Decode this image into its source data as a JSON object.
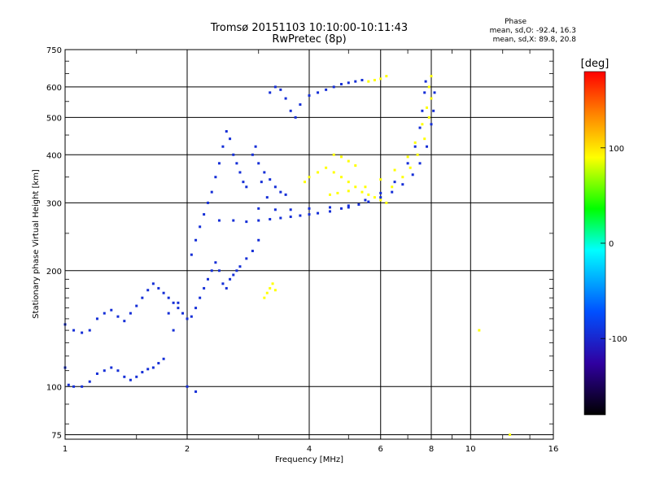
{
  "chart_data": {
    "type": "scatter",
    "title": "Tromsø 20151103 10:10:00-10:11:43",
    "subtitle": "RwPretec (8p)",
    "xlabel": "Frequency [MHz]",
    "ylabel": "Stationary phase Virtual Height [km]",
    "x_scale": "log",
    "y_scale": "log",
    "xlim": [
      1,
      16
    ],
    "ylim": [
      73,
      750
    ],
    "x_ticks": [
      "1",
      "2",
      "4",
      "6",
      "8",
      "10",
      "16"
    ],
    "y_ticks": [
      "75",
      "100",
      "200",
      "300",
      "400",
      "500",
      "600",
      "750"
    ],
    "grid": true,
    "colorbar": {
      "label": "[deg]",
      "range": [
        -180,
        180
      ],
      "ticks": [
        "100",
        "0",
        "-100"
      ],
      "colormap": "rainbow"
    },
    "stats": {
      "heading": "Phase",
      "o_mode": "mean, sd,O: -92.4, 16.3",
      "x_mode": "mean, sd,X:  89.8, 20.8"
    },
    "series": [
      {
        "mode": "O",
        "color_value": -95,
        "points": [
          [
            1.0,
            112
          ],
          [
            1.02,
            101
          ],
          [
            1.05,
            100
          ],
          [
            1.1,
            100
          ],
          [
            1.15,
            103
          ],
          [
            1.2,
            108
          ],
          [
            1.25,
            110
          ],
          [
            1.3,
            112
          ],
          [
            1.35,
            110
          ],
          [
            1.4,
            106
          ],
          [
            1.45,
            104
          ],
          [
            1.5,
            106
          ],
          [
            1.55,
            109
          ],
          [
            1.6,
            111
          ],
          [
            1.65,
            112
          ],
          [
            1.7,
            115
          ],
          [
            1.75,
            118
          ],
          [
            1.0,
            145
          ],
          [
            1.05,
            140
          ],
          [
            1.1,
            138
          ],
          [
            1.15,
            140
          ],
          [
            1.2,
            150
          ],
          [
            1.25,
            155
          ],
          [
            1.3,
            158
          ],
          [
            1.35,
            152
          ],
          [
            1.4,
            148
          ],
          [
            1.45,
            155
          ],
          [
            1.5,
            162
          ],
          [
            1.55,
            170
          ],
          [
            1.6,
            178
          ],
          [
            1.65,
            185
          ],
          [
            1.7,
            180
          ],
          [
            1.75,
            175
          ],
          [
            1.8,
            170
          ],
          [
            1.85,
            165
          ],
          [
            1.9,
            160
          ],
          [
            1.95,
            155
          ],
          [
            2.0,
            150
          ],
          [
            2.05,
            152
          ],
          [
            2.1,
            160
          ],
          [
            2.15,
            170
          ],
          [
            2.2,
            180
          ],
          [
            2.25,
            190
          ],
          [
            2.3,
            200
          ],
          [
            2.35,
            210
          ],
          [
            2.4,
            200
          ],
          [
            2.45,
            185
          ],
          [
            2.5,
            180
          ],
          [
            2.55,
            190
          ],
          [
            2.6,
            195
          ],
          [
            2.65,
            200
          ],
          [
            2.7,
            205
          ],
          [
            2.8,
            215
          ],
          [
            2.9,
            225
          ],
          [
            3.0,
            240
          ],
          [
            2.05,
            220
          ],
          [
            2.1,
            240
          ],
          [
            2.15,
            260
          ],
          [
            2.2,
            280
          ],
          [
            2.25,
            300
          ],
          [
            2.3,
            320
          ],
          [
            2.35,
            350
          ],
          [
            2.4,
            380
          ],
          [
            2.45,
            420
          ],
          [
            2.5,
            460
          ],
          [
            2.55,
            440
          ],
          [
            2.6,
            400
          ],
          [
            2.65,
            380
          ],
          [
            2.7,
            360
          ],
          [
            2.75,
            340
          ],
          [
            2.8,
            330
          ],
          [
            2.4,
            270
          ],
          [
            2.6,
            270
          ],
          [
            2.8,
            268
          ],
          [
            3.0,
            270
          ],
          [
            3.2,
            272
          ],
          [
            3.4,
            274
          ],
          [
            3.6,
            276
          ],
          [
            3.8,
            278
          ],
          [
            4.0,
            280
          ],
          [
            4.2,
            282
          ],
          [
            4.5,
            285
          ],
          [
            4.8,
            290
          ],
          [
            5.0,
            292
          ],
          [
            5.3,
            297
          ],
          [
            5.6,
            302
          ],
          [
            6.0,
            310
          ],
          [
            6.4,
            320
          ],
          [
            6.8,
            335
          ],
          [
            7.2,
            355
          ],
          [
            7.5,
            380
          ],
          [
            7.8,
            420
          ],
          [
            8.0,
            480
          ],
          [
            8.1,
            520
          ],
          [
            8.15,
            580
          ],
          [
            3.0,
            290
          ],
          [
            3.3,
            288
          ],
          [
            3.6,
            288
          ],
          [
            4.0,
            290
          ],
          [
            4.5,
            292
          ],
          [
            5.0,
            295
          ],
          [
            5.5,
            305
          ],
          [
            6.0,
            318
          ],
          [
            6.5,
            340
          ],
          [
            7.0,
            380
          ],
          [
            7.3,
            420
          ],
          [
            7.5,
            470
          ],
          [
            7.6,
            520
          ],
          [
            7.7,
            580
          ],
          [
            7.75,
            620
          ],
          [
            3.0,
            380
          ],
          [
            3.1,
            360
          ],
          [
            3.2,
            345
          ],
          [
            3.3,
            330
          ],
          [
            3.4,
            320
          ],
          [
            3.5,
            315
          ],
          [
            2.9,
            400
          ],
          [
            2.95,
            420
          ],
          [
            3.05,
            340
          ],
          [
            3.15,
            310
          ],
          [
            3.2,
            580
          ],
          [
            3.3,
            600
          ],
          [
            3.4,
            590
          ],
          [
            3.5,
            560
          ],
          [
            3.6,
            520
          ],
          [
            3.7,
            500
          ],
          [
            3.8,
            540
          ],
          [
            4.0,
            570
          ],
          [
            4.2,
            580
          ],
          [
            4.4,
            590
          ],
          [
            4.6,
            600
          ],
          [
            4.8,
            610
          ],
          [
            5.0,
            615
          ],
          [
            5.2,
            620
          ],
          [
            5.4,
            625
          ],
          [
            2.0,
            100
          ],
          [
            2.1,
            97
          ],
          [
            1.8,
            155
          ],
          [
            1.85,
            140
          ],
          [
            1.9,
            165
          ]
        ]
      },
      {
        "mode": "X",
        "color_value": 90,
        "points": [
          [
            3.9,
            340
          ],
          [
            4.0,
            350
          ],
          [
            4.2,
            360
          ],
          [
            4.4,
            370
          ],
          [
            4.6,
            360
          ],
          [
            4.8,
            350
          ],
          [
            5.0,
            340
          ],
          [
            5.2,
            330
          ],
          [
            5.4,
            320
          ],
          [
            5.6,
            315
          ],
          [
            5.8,
            310
          ],
          [
            6.0,
            305
          ],
          [
            6.2,
            300
          ],
          [
            4.5,
            315
          ],
          [
            4.7,
            318
          ],
          [
            5.0,
            322
          ],
          [
            5.5,
            330
          ],
          [
            6.0,
            345
          ],
          [
            6.5,
            365
          ],
          [
            7.0,
            395
          ],
          [
            7.3,
            430
          ],
          [
            7.6,
            480
          ],
          [
            7.8,
            530
          ],
          [
            7.9,
            600
          ],
          [
            8.0,
            640
          ],
          [
            6.4,
            330
          ],
          [
            6.8,
            350
          ],
          [
            7.1,
            370
          ],
          [
            7.4,
            400
          ],
          [
            7.7,
            440
          ],
          [
            7.9,
            500
          ],
          [
            8.0,
            560
          ],
          [
            3.1,
            170
          ],
          [
            3.15,
            175
          ],
          [
            3.2,
            180
          ],
          [
            3.25,
            185
          ],
          [
            3.3,
            178
          ],
          [
            4.6,
            400
          ],
          [
            4.8,
            395
          ],
          [
            5.0,
            385
          ],
          [
            5.2,
            375
          ],
          [
            5.6,
            620
          ],
          [
            5.8,
            625
          ],
          [
            6.0,
            630
          ],
          [
            6.2,
            640
          ],
          [
            10.5,
            140
          ],
          [
            12.5,
            75
          ]
        ]
      }
    ]
  }
}
